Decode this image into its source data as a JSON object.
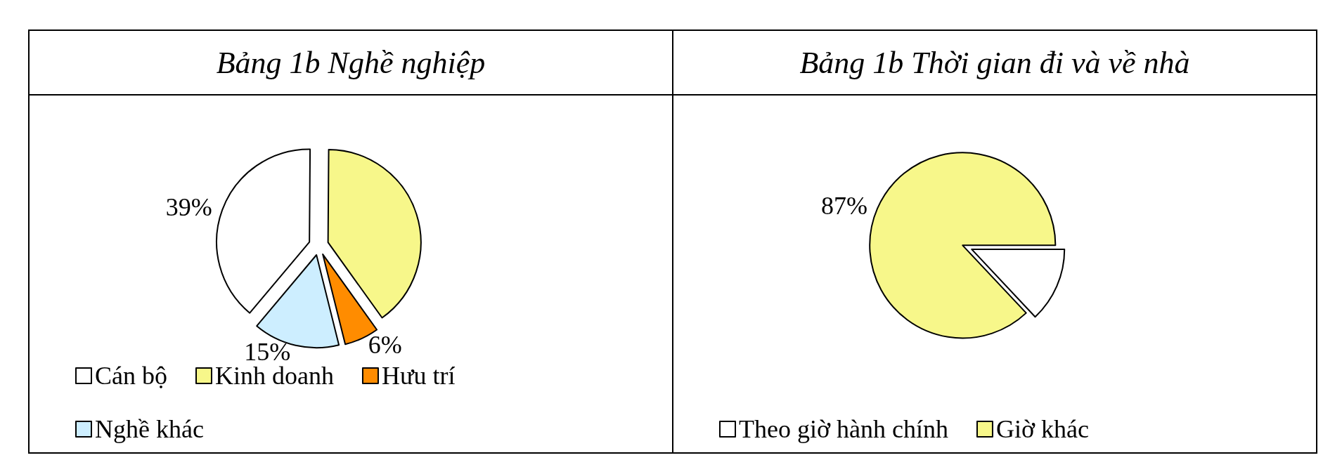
{
  "chart_data": [
    {
      "type": "pie",
      "title": "Bảng 1b  Nghề nghiệp",
      "categories": [
        "Cán bộ",
        "Kinh doanh",
        "Hưu trí",
        "Nghề khác"
      ],
      "values": [
        39,
        40,
        6,
        15
      ],
      "value_labels": [
        "39%",
        null,
        "6%",
        "15%"
      ],
      "colors": [
        "#ffffff",
        "#f7f78a",
        "#ff8c00",
        "#cdeeff"
      ],
      "legend": "bottom"
    },
    {
      "type": "pie",
      "title": "Bảng 1b  Thời gian đi và về nhà",
      "categories": [
        "Theo giờ hành chính",
        "Giờ khác"
      ],
      "values": [
        13,
        87
      ],
      "value_labels": [
        null,
        "87%"
      ],
      "colors": [
        "#ffffff",
        "#f7f78a"
      ],
      "legend": "bottom"
    }
  ]
}
